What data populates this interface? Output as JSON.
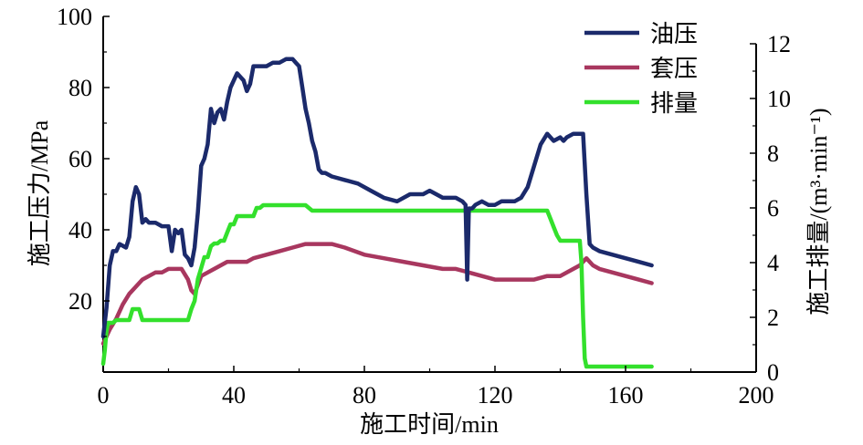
{
  "chart_data": {
    "type": "line",
    "title": "",
    "xlabel": "施工时间/min",
    "ylabel": "施工压力/MPa",
    "ylabel_right": "施工排量/(m³·min⁻¹)",
    "xlim": [
      0,
      200
    ],
    "ylim": [
      0,
      100
    ],
    "ylim_right": [
      0,
      13
    ],
    "xticks": [
      "0",
      "40",
      "80",
      "120",
      "160",
      "200"
    ],
    "yticks": [
      "20",
      "40",
      "60",
      "80",
      "100"
    ],
    "yticks_right": [
      "0",
      "2",
      "4",
      "6",
      "8",
      "10",
      "12"
    ],
    "grid": false,
    "legend_position": "top-right",
    "series": [
      {
        "name": "油压",
        "color": "#1b2a6b",
        "axis": "left",
        "x": [
          0,
          1,
          2,
          3,
          4,
          5,
          7,
          8,
          9,
          10,
          11,
          12,
          13,
          14,
          16,
          18,
          20,
          21,
          22,
          23,
          24,
          25,
          26,
          27,
          28,
          29,
          30,
          31,
          32,
          33,
          34,
          35,
          36,
          37,
          38,
          39,
          40,
          41,
          42,
          43,
          44,
          45,
          46,
          47,
          48,
          50,
          52,
          54,
          56,
          58,
          59,
          60,
          61,
          62,
          63,
          64,
          65,
          66,
          67,
          68,
          70,
          74,
          78,
          82,
          86,
          90,
          94,
          98,
          100,
          102,
          104,
          106,
          108,
          110,
          111,
          111.5,
          112,
          113,
          114,
          116,
          118,
          120,
          122,
          124,
          126,
          128,
          130,
          132,
          134,
          136,
          138,
          140,
          141,
          142,
          144,
          146,
          147,
          148,
          149,
          150,
          152,
          156,
          160,
          164,
          168
        ],
        "y": [
          10,
          18,
          30,
          34,
          34,
          36,
          35,
          38,
          48,
          52,
          50,
          42,
          43,
          42,
          42,
          41,
          41,
          34,
          40,
          39,
          40,
          33,
          32,
          30,
          35,
          45,
          58,
          60,
          64,
          74,
          70,
          73,
          74,
          71,
          76,
          80,
          82,
          84,
          83,
          82,
          79,
          81,
          86,
          86,
          86,
          86,
          87,
          87,
          88,
          88,
          87,
          86,
          80,
          74,
          70,
          65,
          62,
          57,
          56,
          56,
          55,
          54,
          53,
          51,
          49,
          48,
          50,
          50,
          51,
          50,
          49,
          49,
          49,
          48,
          47,
          26,
          46,
          46,
          47,
          48,
          47,
          47,
          48,
          48,
          48,
          49,
          52,
          58,
          64,
          67,
          65,
          66,
          65,
          66,
          67,
          67,
          67,
          50,
          36,
          35,
          34,
          33,
          32,
          31,
          30
        ]
      },
      {
        "name": "套压",
        "color": "#a8375f",
        "axis": "left",
        "x": [
          0,
          2,
          4,
          6,
          8,
          10,
          12,
          14,
          16,
          18,
          20,
          22,
          24,
          26,
          27,
          28,
          30,
          32,
          34,
          36,
          38,
          40,
          42,
          44,
          46,
          50,
          54,
          58,
          62,
          66,
          68,
          70,
          74,
          80,
          86,
          92,
          98,
          104,
          108,
          112,
          116,
          120,
          124,
          128,
          132,
          136,
          140,
          144,
          146,
          148,
          150,
          152,
          156,
          160,
          164,
          168
        ],
        "y": [
          8,
          12,
          15,
          19,
          22,
          24,
          26,
          27,
          28,
          28,
          29,
          29,
          29,
          26,
          23,
          22,
          27,
          28,
          29,
          30,
          31,
          31,
          31,
          31,
          32,
          33,
          34,
          35,
          36,
          36,
          36,
          36,
          35,
          33,
          32,
          31,
          30,
          29,
          29,
          28,
          27,
          26,
          26,
          26,
          26,
          27,
          27,
          29,
          30,
          32,
          30,
          29,
          28,
          27,
          26,
          25
        ]
      },
      {
        "name": "排量",
        "color": "#33e02c",
        "axis": "right",
        "x": [
          0,
          0.5,
          1,
          1.5,
          2,
          3,
          4,
          5,
          6,
          7,
          8,
          9,
          10,
          11,
          12,
          13,
          14,
          20,
          26,
          27,
          28,
          29,
          30,
          31,
          32,
          33,
          34,
          35,
          36,
          37,
          38,
          39,
          40,
          41,
          42,
          44,
          46,
          47,
          48,
          49,
          50,
          52,
          54,
          56,
          58,
          60,
          62,
          63,
          64,
          70,
          80,
          90,
          100,
          110,
          120,
          130,
          136,
          137,
          138,
          139,
          140,
          144,
          146,
          146.5,
          147,
          147.5,
          148,
          150,
          155,
          160,
          165,
          168
        ],
        "y": [
          0.3,
          0.8,
          1.5,
          1.8,
          1.8,
          1.8,
          1.9,
          1.9,
          1.9,
          1.9,
          1.9,
          2.3,
          2.3,
          2.3,
          1.9,
          1.9,
          1.9,
          1.9,
          1.9,
          2.3,
          2.6,
          3.4,
          3.8,
          4.2,
          4.2,
          4.6,
          4.7,
          4.7,
          4.8,
          4.8,
          5.1,
          5.4,
          5.4,
          5.7,
          5.7,
          5.7,
          5.7,
          6.0,
          6.0,
          6.1,
          6.1,
          6.1,
          6.1,
          6.1,
          6.1,
          6.1,
          6.1,
          6.0,
          5.9,
          5.9,
          5.9,
          5.9,
          5.9,
          5.9,
          5.9,
          5.9,
          5.9,
          5.6,
          5.3,
          5.0,
          4.8,
          4.8,
          4.8,
          4.0,
          2.0,
          0.5,
          0.2,
          0.2,
          0.2,
          0.2,
          0.2,
          0.2
        ]
      }
    ]
  }
}
